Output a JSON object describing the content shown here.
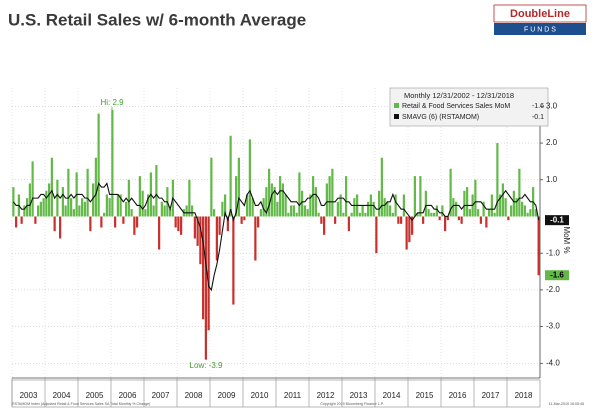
{
  "chart_data": {
    "type": "bar-line",
    "title": "U.S. Retail Sales w/ 6-month Average",
    "logo": {
      "name": "DoubleLine",
      "sub": "F U N D S"
    },
    "legend_title": "Monthly 12/31/2002 - 12/31/2018",
    "y_label": "MoM %",
    "xlim": [
      2003,
      2019
    ],
    "xticks": [
      2003,
      2004,
      2005,
      2006,
      2007,
      2008,
      2009,
      2010,
      2011,
      2012,
      2013,
      2014,
      2015,
      2016,
      2017,
      2018
    ],
    "ylim": [
      -4.4,
      3.5
    ],
    "yticks": [
      {
        "value": 3,
        "label": "3.0"
      },
      {
        "value": 2,
        "label": "2.0"
      },
      {
        "value": 1,
        "label": "1.0"
      },
      {
        "value": -1,
        "label": "-1.0"
      },
      {
        "value": -2,
        "label": "-2.0"
      },
      {
        "value": -3,
        "label": "-3.0"
      },
      {
        "value": -4,
        "label": "-4.0"
      }
    ],
    "grid": true,
    "annotations": [
      "Hi: 2.9",
      "Low: -3.9"
    ],
    "series": [
      {
        "name": "Retail & Food Services Sales MoM",
        "color": "#62b947",
        "negative_color": "#c9302c",
        "values": [
          0.8,
          -0.3,
          0.6,
          -0.2,
          0.3,
          0.5,
          0.9,
          1.5,
          -0.2,
          0.3,
          0.4,
          0.5,
          0.7,
          0.9,
          1.6,
          -0.4,
          1.0,
          -0.6,
          0.8,
          0.3,
          1.3,
          0.5,
          0.2,
          1.2,
          0.3,
          0.5,
          0.4,
          1.3,
          -0.4,
          0.9,
          1.6,
          2.8,
          -0.3,
          0.1,
          0.6,
          0.5,
          2.9,
          -0.3,
          0.6,
          0.6,
          -0.2,
          0.4,
          1.0,
          0.2,
          -0.5,
          -0.3,
          1.1,
          0.7,
          0.2,
          0.6,
          1.2,
          0.3,
          1.4,
          -0.9,
          0.4,
          0.3,
          0.8,
          0.2,
          1.0,
          -0.3,
          -0.4,
          -0.5,
          0.2,
          0.3,
          1.0,
          0.3,
          -0.6,
          -0.8,
          -1.3,
          -2.8,
          -3.9,
          -3.1,
          1.6,
          0.2,
          -1.2,
          -0.5,
          0.4,
          0.6,
          -0.4,
          2.2,
          -2.4,
          1.1,
          1.6,
          -0.2,
          -0.1,
          0.6,
          2.1,
          0.5,
          -1.2,
          -0.3,
          0.2,
          0.5,
          0.8,
          1.3,
          0.9,
          0.8,
          0.4,
          1.1,
          0.9,
          0.6,
          0.1,
          0.3,
          0.3,
          0.1,
          1.2,
          0.7,
          0.3,
          0.2,
          0.6,
          1.1,
          0.8,
          0.1,
          -0.2,
          -0.5,
          0.9,
          1.1,
          1.3,
          -0.2,
          0.4,
          0.6,
          0.1,
          1.1,
          -0.4,
          0.1,
          0.5,
          0.6,
          0.1,
          0.3,
          0.1,
          0.4,
          0.6,
          0.4,
          -1.0,
          0.7,
          1.6,
          0.5,
          0.4,
          0.3,
          0.1,
          0.6,
          -0.2,
          -0.2,
          0.6,
          -0.9,
          -0.7,
          -0.5,
          1.1,
          0.1,
          1.1,
          -0.2,
          0.7,
          0.2,
          0.1,
          0.1,
          0.3,
          -0.1,
          0.3,
          -0.4,
          -0.1,
          1.3,
          0.5,
          0.4,
          -0.1,
          -0.2,
          0.7,
          0.8,
          0.2,
          0.6,
          1.0,
          0.2,
          -0.2,
          0.4,
          -0.3,
          0.2,
          0.6,
          0.1,
          2.0,
          0.6,
          0.9,
          0.5,
          -0.1,
          0.3,
          0.7,
          0.5,
          1.3,
          0.4,
          0.3,
          0.1,
          0.2,
          0.8,
          0.2,
          -1.6
        ]
      },
      {
        "name": "SMAVG (6) (RSTAMOM)",
        "color": "#111111",
        "values": [
          0.4,
          0.3,
          0.3,
          0.2,
          0.2,
          0.3,
          0.3,
          0.5,
          0.5,
          0.5,
          0.6,
          0.6,
          0.5,
          0.6,
          0.7,
          0.5,
          0.6,
          0.5,
          0.6,
          0.5,
          0.5,
          0.6,
          0.5,
          0.6,
          0.6,
          0.6,
          0.5,
          0.5,
          0.4,
          0.5,
          0.6,
          0.9,
          0.8,
          0.8,
          0.9,
          0.6,
          0.6,
          0.6,
          0.6,
          0.5,
          0.4,
          0.5,
          0.4,
          0.5,
          0.4,
          0.3,
          0.3,
          0.2,
          0.3,
          0.5,
          0.6,
          0.5,
          0.6,
          0.5,
          0.5,
          0.4,
          0.4,
          0.2,
          0.5,
          0.4,
          0.3,
          0.2,
          0.1,
          0.1,
          0.1,
          0.1,
          0.1,
          -0.1,
          -0.3,
          -0.7,
          -1.3,
          -1.9,
          -2.0,
          -1.6,
          -1.3,
          -0.9,
          -0.4,
          0.1,
          -0.1,
          0.2,
          -0.1,
          0.1,
          0.5,
          0.4,
          0.3,
          0.6,
          0.7,
          0.5,
          0.3,
          0.3,
          0.4,
          0.2,
          0.1,
          0.3,
          0.6,
          0.7,
          0.6,
          0.7,
          0.7,
          0.6,
          0.5,
          0.4,
          0.4,
          0.4,
          0.3,
          0.4,
          0.4,
          0.5,
          0.5,
          0.6,
          0.6,
          0.5,
          0.3,
          0.3,
          0.4,
          0.4,
          0.4,
          0.4,
          0.5,
          0.5,
          0.5,
          0.4,
          0.4,
          0.3,
          0.3,
          0.3,
          0.3,
          0.3,
          0.3,
          0.3,
          0.3,
          0.3,
          0.2,
          0.2,
          0.3,
          0.3,
          0.4,
          0.4,
          0.6,
          0.4,
          0.3,
          0.2,
          0.2,
          0.1,
          0.0,
          -0.1,
          0.0,
          0.1,
          0.1,
          0.1,
          0.3,
          0.3,
          0.3,
          0.2,
          0.2,
          0.1,
          0.1,
          0.0,
          0.0,
          0.2,
          0.3,
          0.3,
          0.3,
          0.2,
          0.3,
          0.3,
          0.3,
          0.3,
          0.4,
          0.4,
          0.4,
          0.3,
          0.2,
          0.2,
          0.2,
          0.2,
          0.4,
          0.5,
          0.6,
          0.7,
          0.6,
          0.5,
          0.4,
          0.4,
          0.5,
          0.5,
          0.6,
          0.5,
          0.4,
          0.4,
          0.3,
          -0.1
        ]
      }
    ],
    "footer": [
      "RSTAMOM Index (Adjusted Retail & Food Services Sales SA Total Monthly % Change)",
      "Copyright 2019 Bloomberg Finance L.P.",
      "11-Mar-2019 16:05:45"
    ]
  }
}
